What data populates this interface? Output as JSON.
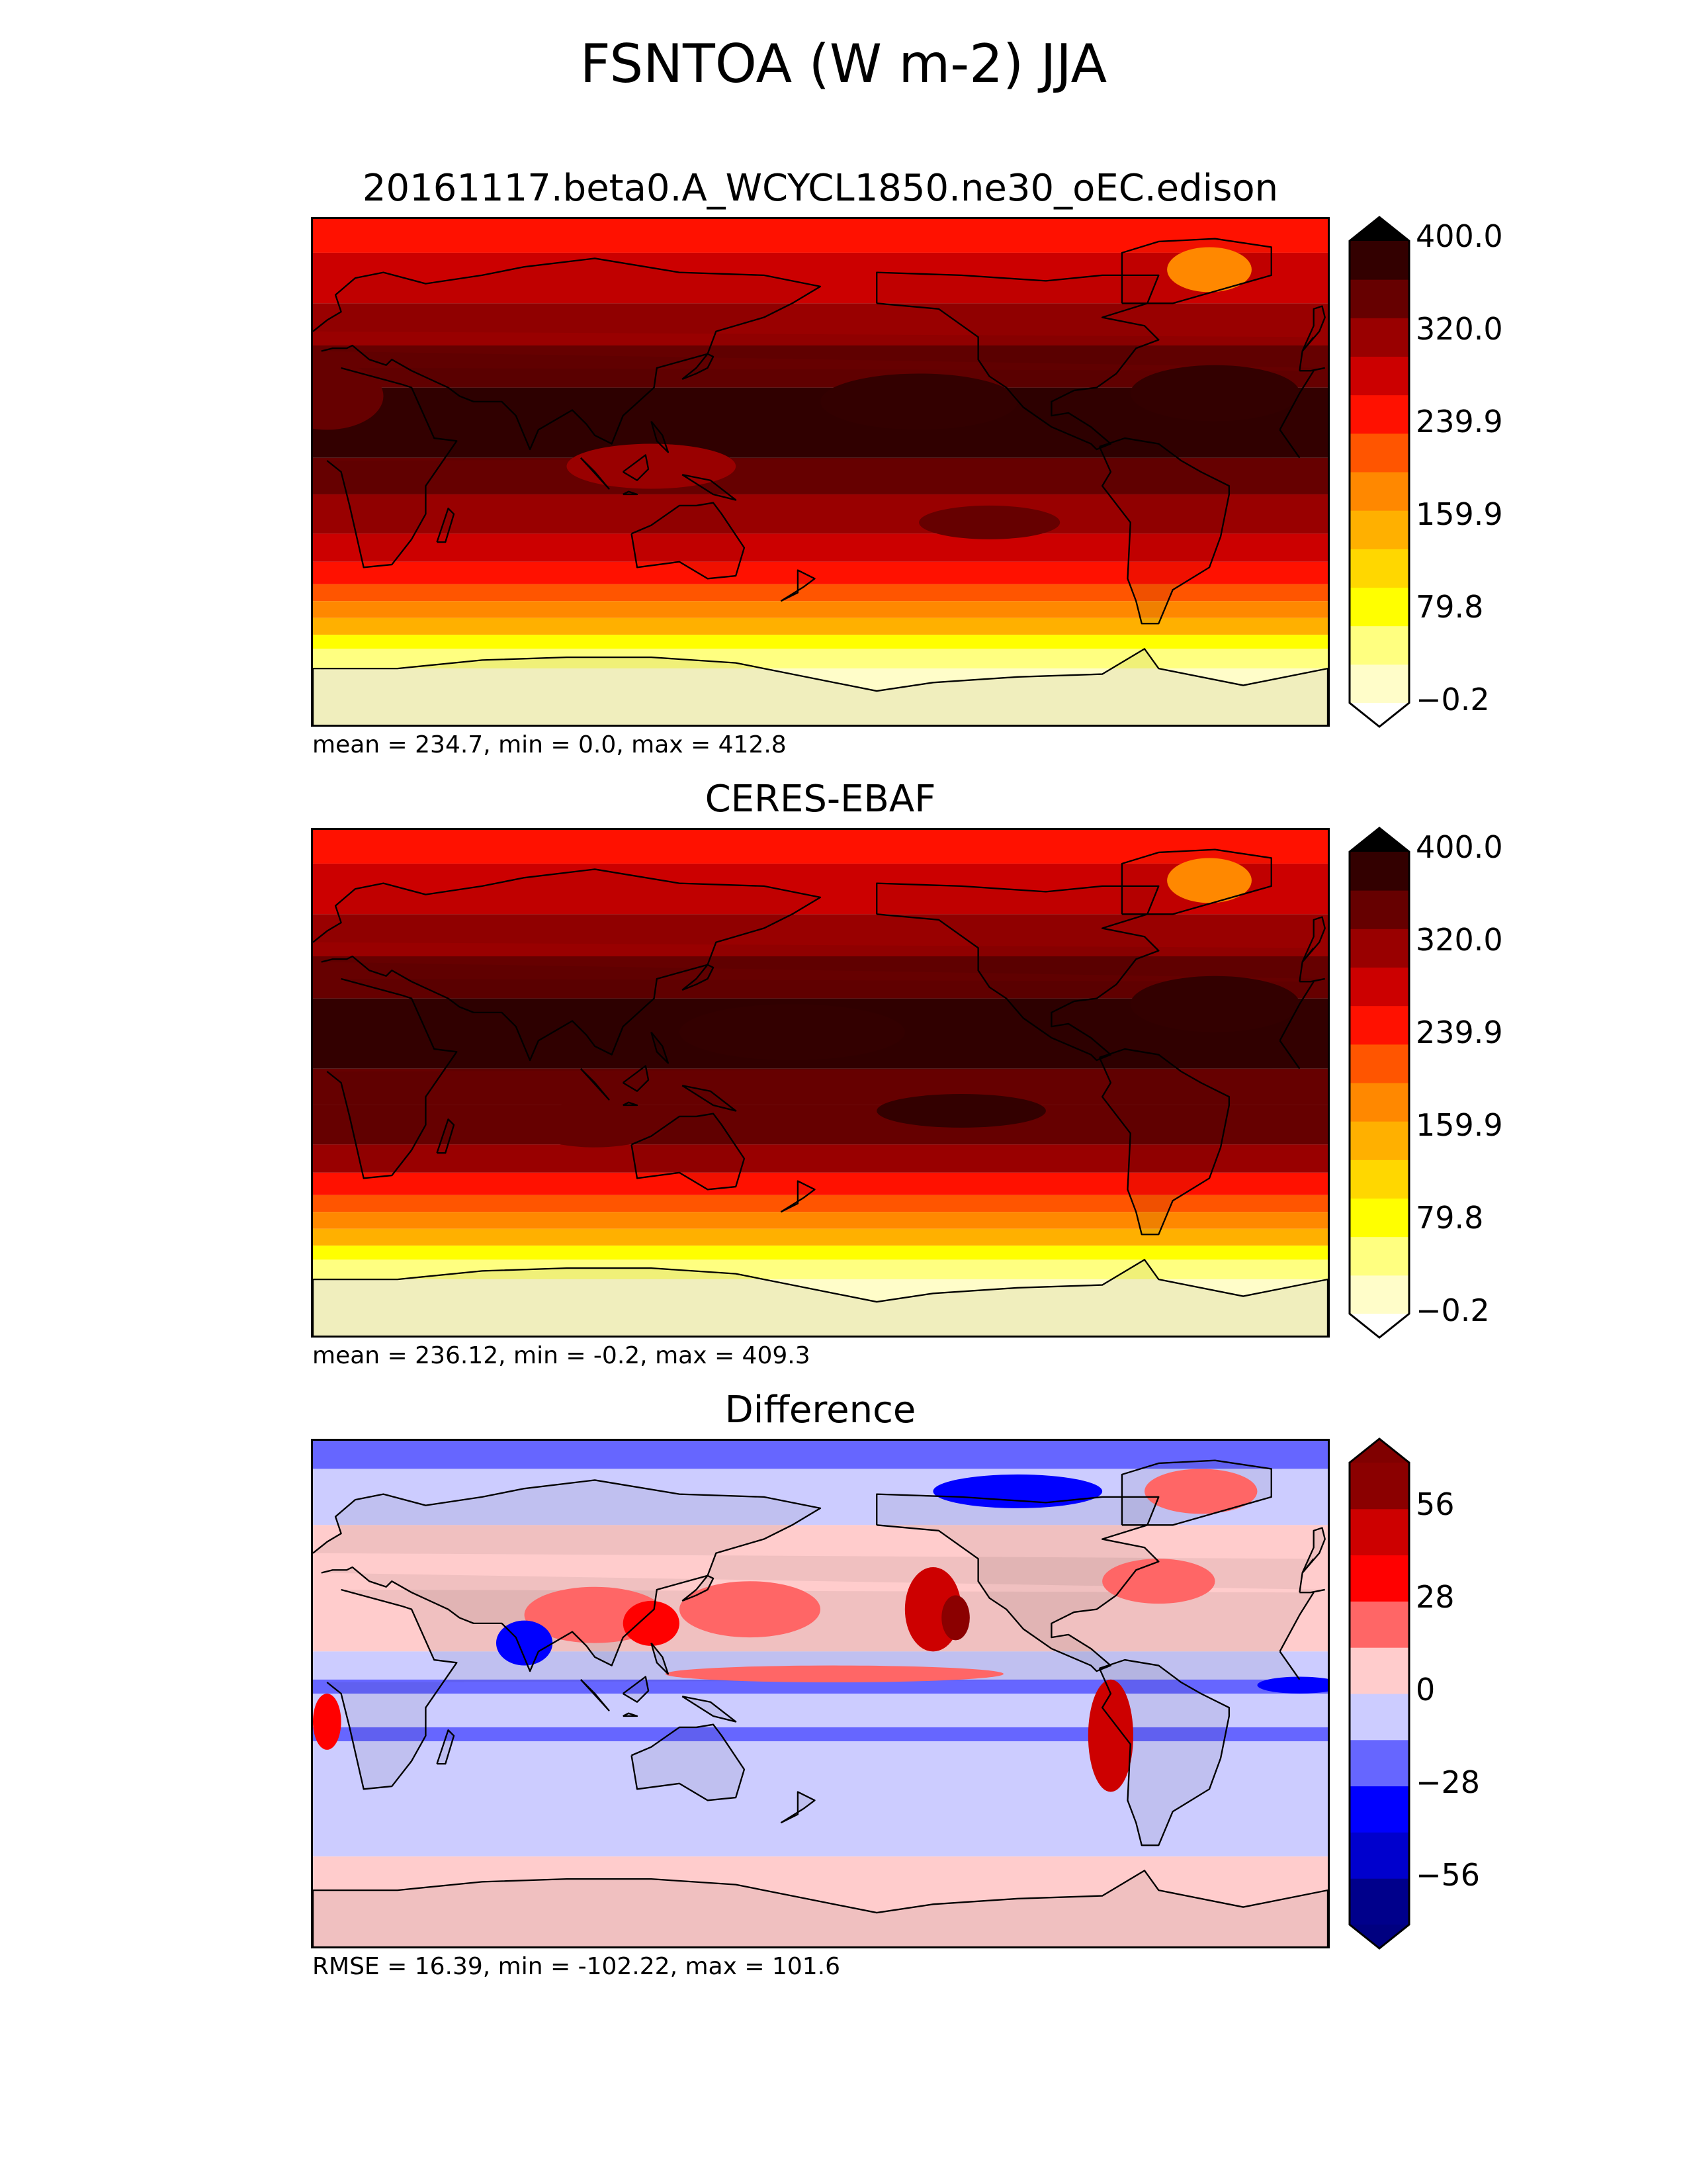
{
  "figure": {
    "title": "FSNTOA (W m-2) JJA"
  },
  "panels": [
    {
      "id": "test",
      "title": "20161117.beta0.A_WCYCL1850.ne30_oEC.edison",
      "stats": "mean = 234.7, min = 0.0, max = 412.8",
      "colorbar": {
        "ticks": [
          "400.0",
          "320.0",
          "239.9",
          "159.9",
          "79.8",
          "−0.2"
        ],
        "colors": [
          "#fffdc9",
          "#ffff80",
          "#ffff00",
          "#ffd700",
          "#ffb000",
          "#ff8800",
          "#ff5500",
          "#ff1100",
          "#cc0000",
          "#990000",
          "#660000",
          "#330000"
        ],
        "extend_low_color": "#ffffff",
        "extend_high_color": "#000000"
      },
      "map": {
        "bands": [
          {
            "lat": 90,
            "level": 7
          },
          {
            "lat": 78,
            "level": 8
          },
          {
            "lat": 60,
            "level": 9
          },
          {
            "lat": 45,
            "level": 10
          },
          {
            "lat": 30,
            "level": 11
          },
          {
            "lat": 5,
            "level": 10
          },
          {
            "lat": -8,
            "level": 9
          },
          {
            "lat": -22,
            "level": 8
          },
          {
            "lat": -32,
            "level": 7
          },
          {
            "lat": -40,
            "level": 6
          },
          {
            "lat": -46,
            "level": 5
          },
          {
            "lat": -52,
            "level": 4
          },
          {
            "lat": -58,
            "level": 2
          },
          {
            "lat": -63,
            "level": 1
          },
          {
            "lat": -70,
            "level": 0
          }
        ],
        "features": [
          {
            "lon": 5,
            "lat": 27,
            "rx": 20,
            "ry": 12,
            "level": 10
          },
          {
            "lon": 215,
            "lat": 25,
            "rx": 35,
            "ry": 10,
            "level": 11
          },
          {
            "lon": 320,
            "lat": 28,
            "rx": 30,
            "ry": 10,
            "level": 11
          },
          {
            "lon": 318,
            "lat": 72,
            "rx": 15,
            "ry": 8,
            "level": 5
          },
          {
            "lon": 120,
            "lat": 2,
            "rx": 30,
            "ry": 8,
            "level": 9
          },
          {
            "lon": 240,
            "lat": -18,
            "rx": 25,
            "ry": 6,
            "level": 10
          }
        ]
      }
    },
    {
      "id": "reference",
      "title": "CERES-EBAF",
      "stats": "mean = 236.12, min = -0.2, max = 409.3",
      "colorbar": {
        "ticks": [
          "400.0",
          "320.0",
          "239.9",
          "159.9",
          "79.8",
          "−0.2"
        ],
        "colors": [
          "#fffdc9",
          "#ffff80",
          "#ffff00",
          "#ffd700",
          "#ffb000",
          "#ff8800",
          "#ff5500",
          "#ff1100",
          "#cc0000",
          "#990000",
          "#660000",
          "#330000"
        ],
        "extend_low_color": "#ffffff",
        "extend_high_color": "#000000"
      },
      "map": {
        "bands": [
          {
            "lat": 90,
            "level": 7
          },
          {
            "lat": 78,
            "level": 8
          },
          {
            "lat": 60,
            "level": 9
          },
          {
            "lat": 45,
            "level": 10
          },
          {
            "lat": 30,
            "level": 11
          },
          {
            "lat": 5,
            "level": 10
          },
          {
            "lat": -8,
            "level": 10
          },
          {
            "lat": -22,
            "level": 9
          },
          {
            "lat": -32,
            "level": 7
          },
          {
            "lat": -40,
            "level": 6
          },
          {
            "lat": -46,
            "level": 5
          },
          {
            "lat": -52,
            "level": 4
          },
          {
            "lat": -58,
            "level": 2
          },
          {
            "lat": -63,
            "level": 1
          },
          {
            "lat": -70,
            "level": 0
          }
        ],
        "features": [
          {
            "lon": 170,
            "lat": 18,
            "rx": 40,
            "ry": 10,
            "level": 11
          },
          {
            "lon": 318,
            "lat": 72,
            "rx": 15,
            "ry": 8,
            "level": 5
          },
          {
            "lon": 320,
            "lat": 28,
            "rx": 30,
            "ry": 10,
            "level": 11
          },
          {
            "lon": 230,
            "lat": -10,
            "rx": 30,
            "ry": 6,
            "level": 11
          },
          {
            "lon": 100,
            "lat": -15,
            "rx": 25,
            "ry": 8,
            "level": 10
          }
        ]
      }
    },
    {
      "id": "difference",
      "title": "Difference",
      "stats": "RMSE = 16.39, min = -102.22, max = 101.6",
      "colorbar": {
        "ticks": [
          "56",
          "28",
          "0",
          "−28",
          "−56"
        ],
        "colors": [
          "#00008b",
          "#0000cd",
          "#0000ff",
          "#6666ff",
          "#ccccff",
          "#ffcccc",
          "#ff6666",
          "#ff0000",
          "#cd0000",
          "#8b0000"
        ],
        "extend_low_color": "#000080",
        "extend_high_color": "#800000"
      },
      "map": {
        "bands": [
          {
            "lat": 90,
            "level": 3
          },
          {
            "lat": 80,
            "level": 4
          },
          {
            "lat": 60,
            "level": 5
          },
          {
            "lat": 15,
            "level": 4
          },
          {
            "lat": 5,
            "level": 3
          },
          {
            "lat": 0,
            "level": 4
          },
          {
            "lat": -12,
            "level": 3
          },
          {
            "lat": -17,
            "level": 4
          },
          {
            "lat": -58,
            "level": 5
          }
        ],
        "features": [
          {
            "lon": 220,
            "lat": 30,
            "rx": 10,
            "ry": 15,
            "level": 8
          },
          {
            "lon": 228,
            "lat": 27,
            "rx": 5,
            "ry": 8,
            "level": 9
          },
          {
            "lon": 283,
            "lat": -15,
            "rx": 8,
            "ry": 20,
            "level": 8
          },
          {
            "lon": 155,
            "lat": 30,
            "rx": 25,
            "ry": 10,
            "level": 6
          },
          {
            "lon": 100,
            "lat": 28,
            "rx": 25,
            "ry": 10,
            "level": 6
          },
          {
            "lon": 120,
            "lat": 25,
            "rx": 10,
            "ry": 8,
            "level": 7
          },
          {
            "lon": 315,
            "lat": 72,
            "rx": 20,
            "ry": 8,
            "level": 6
          },
          {
            "lon": 250,
            "lat": 72,
            "rx": 30,
            "ry": 6,
            "level": 2
          },
          {
            "lon": 185,
            "lat": 7,
            "rx": 60,
            "ry": 3,
            "level": 6
          },
          {
            "lon": 75,
            "lat": 18,
            "rx": 10,
            "ry": 8,
            "level": 2
          },
          {
            "lon": 5,
            "lat": -10,
            "rx": 5,
            "ry": 10,
            "level": 7
          },
          {
            "lon": 350,
            "lat": 3,
            "rx": 15,
            "ry": 3,
            "level": 2
          },
          {
            "lon": 300,
            "lat": 40,
            "rx": 20,
            "ry": 8,
            "level": 6
          }
        ]
      }
    }
  ]
}
